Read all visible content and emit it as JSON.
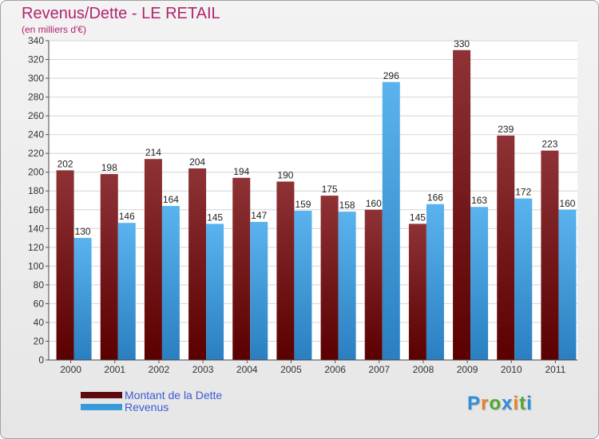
{
  "title": "Revenus/Dette - LE RETAIL",
  "subtitle": "(en milliers d'€)",
  "chart_data": {
    "type": "bar",
    "categories": [
      "2000",
      "2001",
      "2002",
      "2003",
      "2004",
      "2005",
      "2006",
      "2007",
      "2008",
      "2009",
      "2010",
      "2011"
    ],
    "series": [
      {
        "name": "Montant de la Dette",
        "values": [
          202,
          198,
          214,
          204,
          194,
          190,
          175,
          160,
          145,
          330,
          239,
          223
        ],
        "color": "#7a1e22"
      },
      {
        "name": "Revenus",
        "values": [
          130,
          146,
          164,
          145,
          147,
          159,
          158,
          296,
          166,
          163,
          172,
          160
        ],
        "color": "#3a9ad9"
      }
    ],
    "ylim": [
      0,
      340
    ],
    "yticks": [
      0,
      20,
      40,
      60,
      80,
      100,
      120,
      140,
      160,
      180,
      200,
      220,
      240,
      260,
      280,
      300,
      320,
      340
    ],
    "grid": true
  },
  "legend": {
    "items": [
      {
        "label": "Montant de la Dette",
        "color": "#5c0c0e"
      },
      {
        "label": "Revenus",
        "color": "#3a9ad9"
      }
    ]
  },
  "logo": {
    "text": "Proxiti",
    "colors": [
      "#2f8fd8",
      "#e8822a",
      "#56a832",
      "#2f8fd8",
      "#e8822a",
      "#56a832",
      "#2f8fd8"
    ]
  }
}
